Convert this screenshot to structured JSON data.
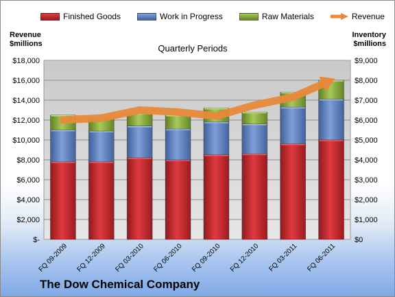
{
  "chart_data": {
    "type": "bar",
    "stacked": true,
    "title": "Quarterly Periods",
    "company": "The Dow Chemical Company",
    "categories": [
      "FQ 09-2009",
      "FQ 12-2009",
      "FQ 03-2010",
      "FQ 06-2010",
      "FQ 09-2010",
      "FQ 12-2010",
      "FQ 03-2011",
      "FQ 06-2011"
    ],
    "series": [
      {
        "name": "Finished Goods",
        "axis": "right",
        "color": "#c0262c",
        "values": [
          3900,
          3900,
          4100,
          4000,
          4250,
          4300,
          4800,
          5000
        ]
      },
      {
        "name": "Work in Progress",
        "axis": "right",
        "color": "#5b7fc0",
        "values": [
          1600,
          1550,
          1600,
          1550,
          1650,
          1500,
          1850,
          2050
        ]
      },
      {
        "name": "Raw Materials",
        "axis": "right",
        "color": "#88ad3c",
        "values": [
          750,
          650,
          650,
          700,
          700,
          600,
          750,
          950
        ]
      },
      {
        "name": "Revenue",
        "axis": "left",
        "type": "line",
        "color": "#e8893a",
        "values": [
          12000,
          12200,
          13000,
          12800,
          12400,
          13500,
          14300,
          16000
        ]
      }
    ],
    "ylabel_left": "Revenue\n$millions",
    "ylabel_right": "Inventory\n$millions",
    "ylim_left": [
      0,
      18000
    ],
    "ylim_right": [
      0,
      9000
    ],
    "y_ticks_left": [
      "$-",
      "$2,000",
      "$4,000",
      "$6,000",
      "$8,000",
      "$10,000",
      "$12,000",
      "$14,000",
      "$16,000",
      "$18,000"
    ],
    "y_ticks_right": [
      "$0",
      "$1,000",
      "$2,000",
      "$3,000",
      "$4,000",
      "$5,000",
      "$6,000",
      "$7,000",
      "$8,000",
      "$9,000"
    ],
    "grid": true,
    "legend_position": "top"
  }
}
